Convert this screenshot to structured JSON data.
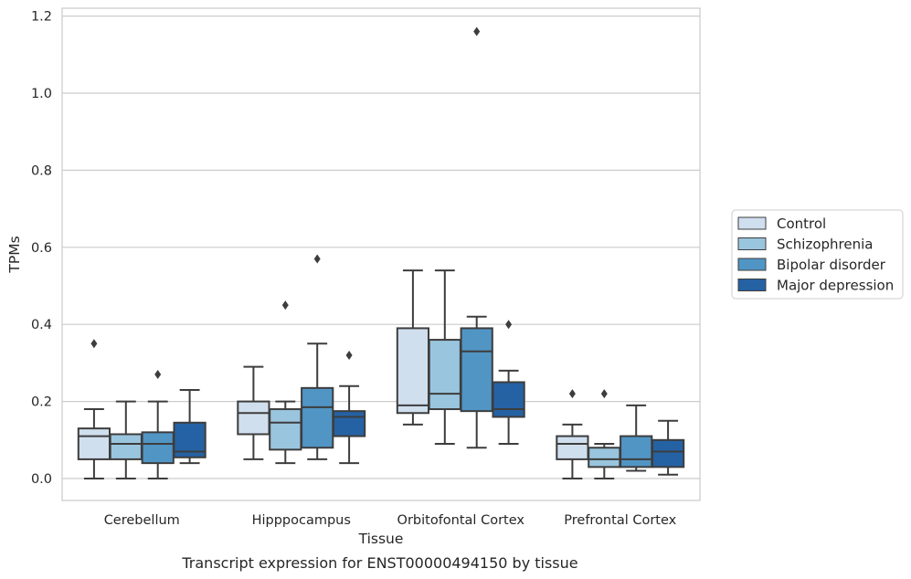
{
  "chart_data": {
    "type": "box",
    "caption": "Transcript expression for ENST00000494150 by tissue",
    "xlabel": "Tissue",
    "ylabel": "TPMs",
    "ylim": [
      -0.055,
      1.225
    ],
    "yticks": [
      0.0,
      0.2,
      0.4,
      0.6,
      0.8,
      1.0,
      1.2
    ],
    "ytick_labels": [
      "0.0",
      "0.2",
      "0.4",
      "0.6",
      "0.8",
      "1.0",
      "1.2"
    ],
    "grid": "horizontal",
    "legend_position": "right",
    "categories": [
      "Cerebellum",
      "Hipppocampus",
      "Orbitofontal Cortex",
      "Prefrontal Cortex"
    ],
    "series": [
      {
        "name": "Control",
        "color": "#d0dfee",
        "boxes": [
          {
            "whislo": 0.0,
            "q1": 0.05,
            "med": 0.11,
            "q3": 0.13,
            "whishi": 0.18,
            "fliers": [
              0.35
            ]
          },
          {
            "whislo": 0.05,
            "q1": 0.115,
            "med": 0.17,
            "q3": 0.2,
            "whishi": 0.29,
            "fliers": []
          },
          {
            "whislo": 0.14,
            "q1": 0.17,
            "med": 0.19,
            "q3": 0.39,
            "whishi": 0.54,
            "fliers": []
          },
          {
            "whislo": 0.0,
            "q1": 0.05,
            "med": 0.09,
            "q3": 0.11,
            "whishi": 0.14,
            "fliers": [
              0.22
            ]
          }
        ]
      },
      {
        "name": "Schizophrenia",
        "color": "#9ac5de",
        "boxes": [
          {
            "whislo": 0.0,
            "q1": 0.05,
            "med": 0.09,
            "q3": 0.115,
            "whishi": 0.2,
            "fliers": []
          },
          {
            "whislo": 0.04,
            "q1": 0.075,
            "med": 0.145,
            "q3": 0.18,
            "whishi": 0.2,
            "fliers": [
              0.45
            ]
          },
          {
            "whislo": 0.09,
            "q1": 0.18,
            "med": 0.22,
            "q3": 0.36,
            "whishi": 0.54,
            "fliers": []
          },
          {
            "whislo": 0.0,
            "q1": 0.03,
            "med": 0.05,
            "q3": 0.08,
            "whishi": 0.09,
            "fliers": [
              0.22
            ]
          }
        ]
      },
      {
        "name": "Bipolar disorder",
        "color": "#5195c5",
        "boxes": [
          {
            "whislo": 0.0,
            "q1": 0.04,
            "med": 0.09,
            "q3": 0.12,
            "whishi": 0.2,
            "fliers": [
              0.27
            ]
          },
          {
            "whislo": 0.05,
            "q1": 0.08,
            "med": 0.185,
            "q3": 0.235,
            "whishi": 0.35,
            "fliers": [
              0.57
            ]
          },
          {
            "whislo": 0.08,
            "q1": 0.175,
            "med": 0.33,
            "q3": 0.39,
            "whishi": 0.42,
            "fliers": [
              1.16
            ]
          },
          {
            "whislo": 0.02,
            "q1": 0.03,
            "med": 0.05,
            "q3": 0.11,
            "whishi": 0.19,
            "fliers": []
          }
        ]
      },
      {
        "name": "Major depression",
        "color": "#2562a4",
        "boxes": [
          {
            "whislo": 0.04,
            "q1": 0.055,
            "med": 0.07,
            "q3": 0.145,
            "whishi": 0.23,
            "fliers": []
          },
          {
            "whislo": 0.04,
            "q1": 0.11,
            "med": 0.16,
            "q3": 0.175,
            "whishi": 0.24,
            "fliers": [
              0.32
            ]
          },
          {
            "whislo": 0.09,
            "q1": 0.16,
            "med": 0.18,
            "q3": 0.25,
            "whishi": 0.28,
            "fliers": [
              0.4
            ]
          },
          {
            "whislo": 0.01,
            "q1": 0.03,
            "med": 0.07,
            "q3": 0.1,
            "whishi": 0.15,
            "fliers": []
          }
        ]
      }
    ]
  }
}
